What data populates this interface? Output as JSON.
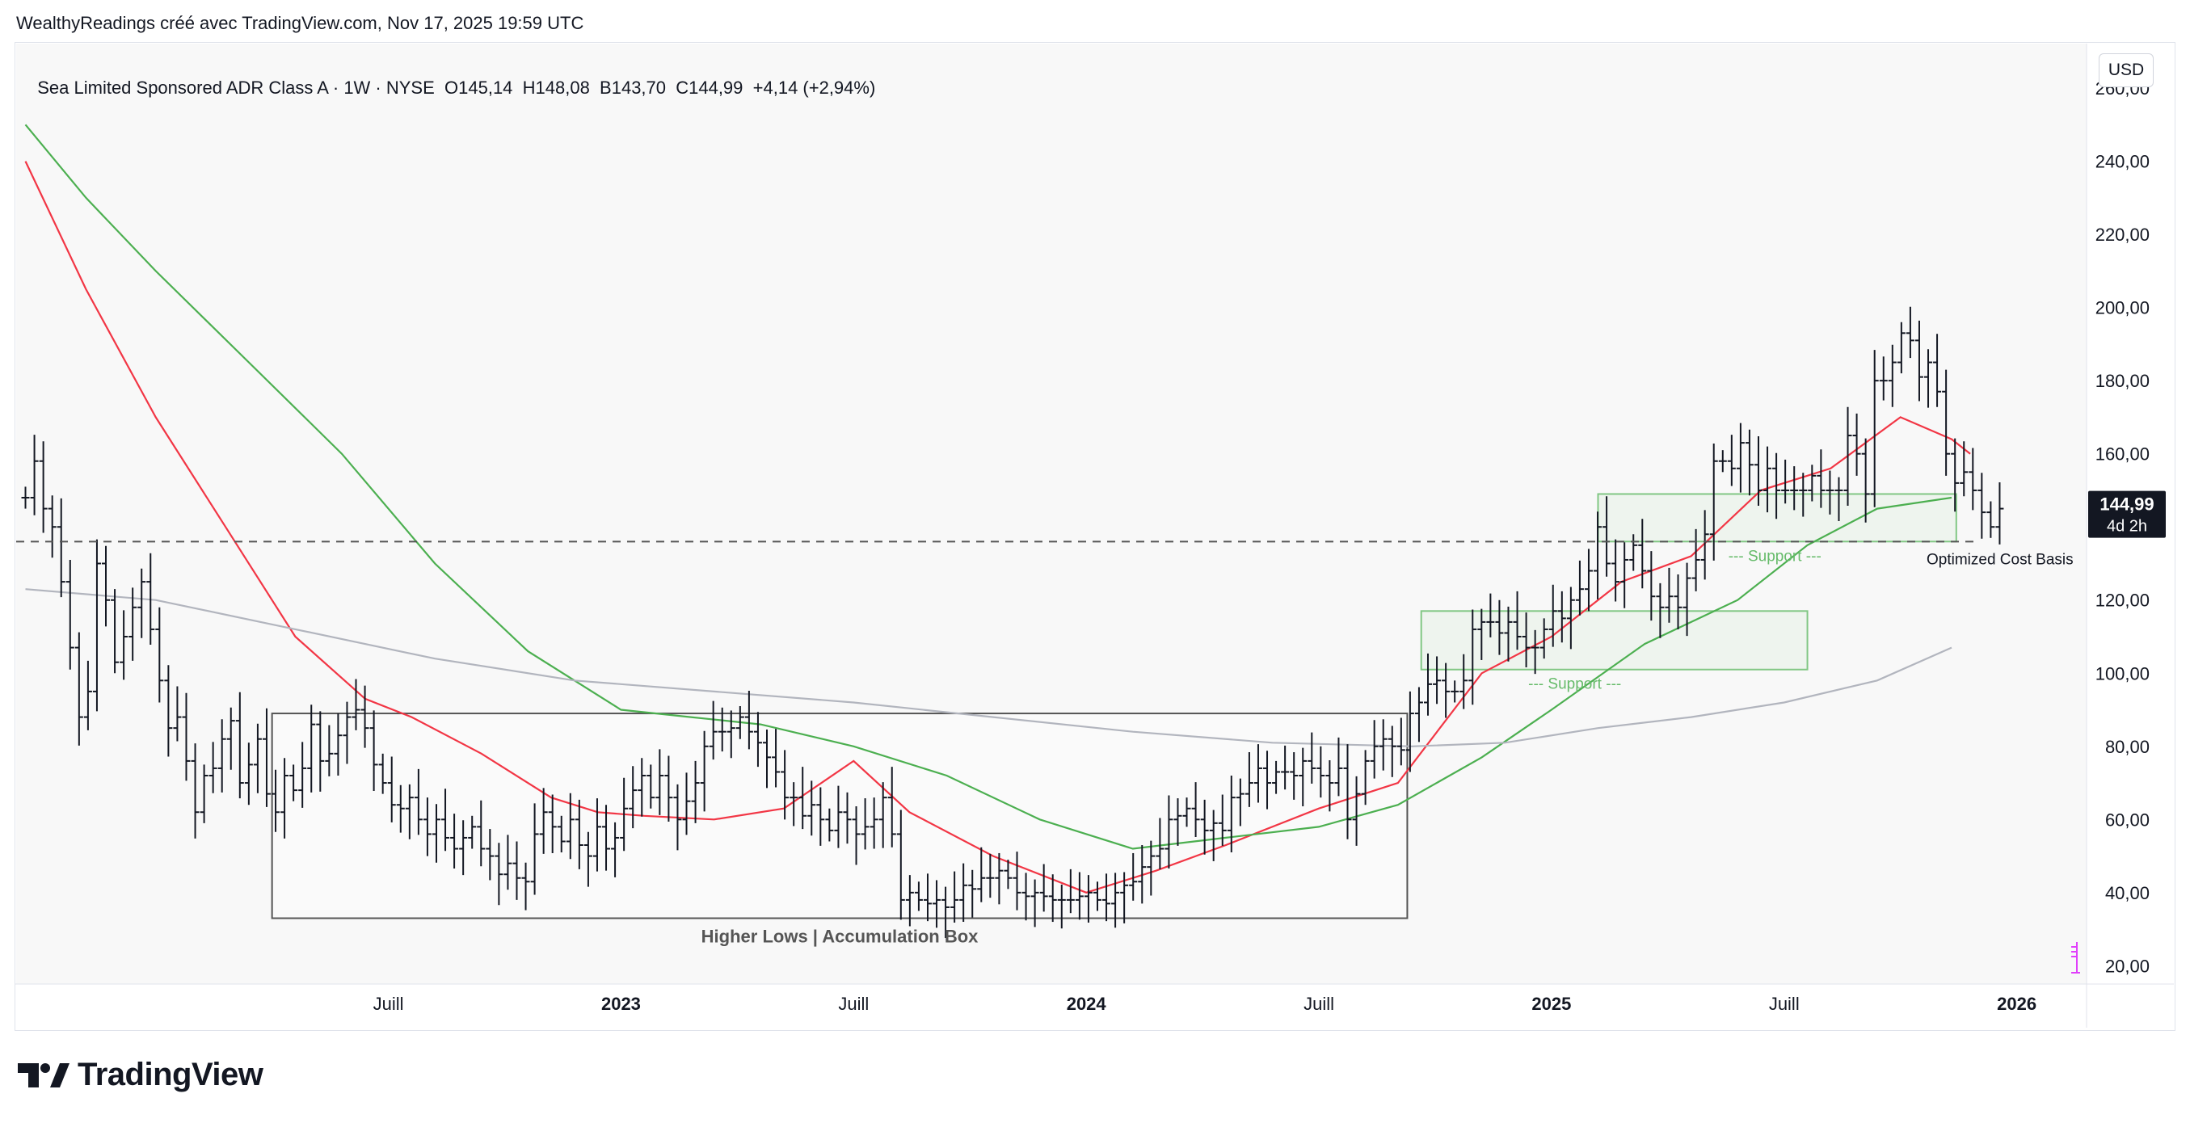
{
  "header": {
    "attribution": "WealthyReadings créé avec TradingView.com, Nov 17, 2025 19:59 UTC"
  },
  "legend": {
    "symbol": "Sea Limited Sponsored ADR Class A · 1W · NYSE",
    "ohlc": "O145,14  H148,08  B143,70  C144,99  +4,14 (+2,94%)"
  },
  "currency": "USD",
  "price_badge": {
    "price": "144,99",
    "countdown": "4d 2h"
  },
  "brand": "TradingView",
  "colors": {
    "sma_short": "#f23645",
    "sma_mid": "#4caf50",
    "sma_long": "#b2b5be",
    "bars": "#131722",
    "box_border": "#555555",
    "support_box": "#81c784",
    "badge_bg": "#131722",
    "accent_icon": "#e040fb"
  },
  "chart_data": {
    "type": "ohlc",
    "title": "Sea Limited Sponsored ADR Class A · 1W · NYSE",
    "ylim": [
      15,
      262
    ],
    "y_ticks": [
      "260,00",
      "240,00",
      "220,00",
      "200,00",
      "180,00",
      "160,00",
      "140,00",
      "120,00",
      "100,00",
      "80,00",
      "60,00",
      "40,00",
      "20,00"
    ],
    "y_tick_values": [
      260,
      240,
      220,
      200,
      180,
      160,
      140,
      120,
      100,
      80,
      60,
      40,
      20
    ],
    "x_ticks": [
      "Juill",
      "2023",
      "Juill",
      "2024",
      "Juill",
      "2025",
      "Juill",
      "2026"
    ],
    "x_tick_dates": [
      2022.5,
      2023.0,
      2023.5,
      2024.0,
      2024.5,
      2025.0,
      2025.5,
      2026.0
    ],
    "x_range": [
      2021.7,
      2026.15
    ],
    "bold_ticks": [
      "2023",
      "2024",
      "2025",
      "2026"
    ],
    "price_series": {
      "start": 2021.72,
      "step": 0.0192,
      "close": [
        148,
        158,
        145,
        140,
        125,
        107,
        88,
        95,
        130,
        120,
        103,
        110,
        118,
        125,
        112,
        98,
        85,
        88,
        76,
        62,
        72,
        74,
        82,
        87,
        70,
        75,
        82,
        67,
        62,
        72,
        68,
        74,
        86,
        76,
        78,
        83,
        88,
        90,
        85,
        75,
        70,
        64,
        63,
        66,
        60,
        56,
        60,
        55,
        52,
        55,
        58,
        52,
        50,
        45,
        48,
        44,
        43,
        56,
        62,
        58,
        54,
        60,
        53,
        50,
        58,
        52,
        55,
        63,
        68,
        72,
        66,
        72,
        66,
        60,
        65,
        70,
        80,
        84,
        84,
        85,
        88,
        84,
        81,
        77,
        73,
        66,
        66,
        61,
        64,
        60,
        57,
        62,
        60,
        56,
        58,
        60,
        66,
        56,
        38,
        40,
        38,
        37,
        38,
        36,
        38,
        42,
        41,
        44,
        44,
        46,
        44,
        40,
        39,
        40,
        39,
        38,
        38,
        38,
        39,
        40,
        38,
        37,
        40,
        42,
        43,
        47,
        50,
        52,
        60,
        61,
        63,
        60,
        57,
        59,
        57,
        66,
        67,
        70,
        74,
        70,
        73,
        73,
        72,
        76,
        74,
        72,
        70,
        74,
        60,
        67,
        76,
        80,
        82,
        80,
        79,
        89,
        92,
        97,
        98,
        95,
        95,
        98,
        112,
        114,
        114,
        111,
        114,
        110,
        107,
        107,
        112,
        117,
        115,
        120,
        123,
        128,
        140,
        130,
        125,
        131,
        135,
        128,
        121,
        118,
        121,
        118,
        126,
        131,
        138,
        158,
        158,
        156,
        163,
        157,
        150,
        156,
        150,
        150,
        150,
        150,
        154,
        150,
        150,
        150,
        165,
        160,
        149,
        180,
        180,
        185,
        193,
        191,
        181,
        185,
        177,
        160,
        152,
        155,
        150,
        144,
        140,
        145
      ],
      "high_offset": 6,
      "low_offset": 6
    },
    "series": [
      {
        "name": "MA short (red)",
        "color": "#f23645",
        "points": [
          [
            2021.72,
            240
          ],
          [
            2021.85,
            205
          ],
          [
            2022.0,
            170
          ],
          [
            2022.15,
            140
          ],
          [
            2022.3,
            110
          ],
          [
            2022.45,
            93
          ],
          [
            2022.55,
            88
          ],
          [
            2022.7,
            78
          ],
          [
            2022.85,
            66
          ],
          [
            2022.95,
            62
          ],
          [
            2023.05,
            61
          ],
          [
            2023.2,
            60
          ],
          [
            2023.35,
            63
          ],
          [
            2023.5,
            76
          ],
          [
            2023.62,
            62
          ],
          [
            2023.8,
            50
          ],
          [
            2024.0,
            40
          ],
          [
            2024.15,
            46
          ],
          [
            2024.3,
            53
          ],
          [
            2024.5,
            63
          ],
          [
            2024.67,
            70
          ],
          [
            2024.85,
            100
          ],
          [
            2025.0,
            110
          ],
          [
            2025.15,
            125
          ],
          [
            2025.3,
            132
          ],
          [
            2025.45,
            150
          ],
          [
            2025.6,
            156
          ],
          [
            2025.75,
            170
          ],
          [
            2025.86,
            164
          ],
          [
            2025.9,
            160
          ]
        ]
      },
      {
        "name": "MA mid (green)",
        "color": "#4caf50",
        "points": [
          [
            2021.72,
            250
          ],
          [
            2021.85,
            230
          ],
          [
            2022.0,
            210
          ],
          [
            2022.2,
            185
          ],
          [
            2022.4,
            160
          ],
          [
            2022.6,
            130
          ],
          [
            2022.8,
            106
          ],
          [
            2023.0,
            90
          ],
          [
            2023.15,
            88
          ],
          [
            2023.3,
            86
          ],
          [
            2023.5,
            80
          ],
          [
            2023.7,
            72
          ],
          [
            2023.9,
            60
          ],
          [
            2024.1,
            52
          ],
          [
            2024.3,
            55
          ],
          [
            2024.5,
            58
          ],
          [
            2024.67,
            64
          ],
          [
            2024.85,
            77
          ],
          [
            2025.0,
            90
          ],
          [
            2025.2,
            108
          ],
          [
            2025.4,
            120
          ],
          [
            2025.55,
            135
          ],
          [
            2025.7,
            145
          ],
          [
            2025.86,
            148
          ]
        ]
      },
      {
        "name": "MA long (grey)",
        "color": "#b2b5be",
        "points": [
          [
            2021.72,
            123
          ],
          [
            2022.0,
            120
          ],
          [
            2022.3,
            112
          ],
          [
            2022.6,
            104
          ],
          [
            2022.9,
            98
          ],
          [
            2023.2,
            95
          ],
          [
            2023.5,
            92
          ],
          [
            2023.8,
            88
          ],
          [
            2024.1,
            84
          ],
          [
            2024.4,
            81
          ],
          [
            2024.7,
            80
          ],
          [
            2024.9,
            81
          ],
          [
            2025.1,
            85
          ],
          [
            2025.3,
            88
          ],
          [
            2025.5,
            92
          ],
          [
            2025.7,
            98
          ],
          [
            2025.86,
            107
          ]
        ]
      }
    ],
    "annotations": {
      "accumulation_box": {
        "label": "Higher Lows | Accumulation Box",
        "x": [
          2022.25,
          2024.69
        ],
        "y": [
          33,
          89
        ]
      },
      "support_boxes": [
        {
          "label": "--- Support ---",
          "x": [
            2025.1,
            2025.87
          ],
          "y": [
            136,
            149
          ]
        },
        {
          "label": "--- Support ---",
          "x": [
            2024.72,
            2025.55
          ],
          "y": [
            101,
            117
          ]
        }
      ],
      "cost_basis": {
        "label": "Optimized Cost Basis",
        "value": 136
      }
    }
  }
}
